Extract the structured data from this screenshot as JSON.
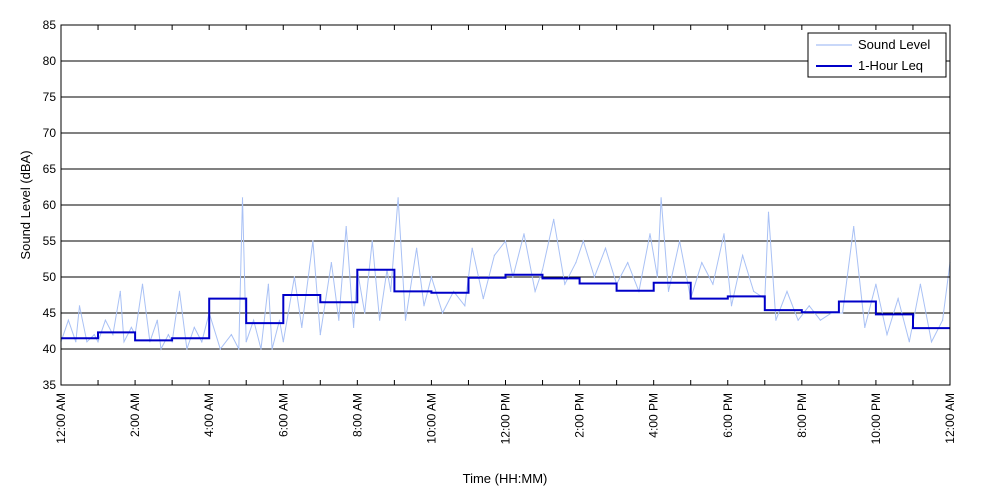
{
  "chart_data": {
    "type": "line",
    "xlabel": "Time (HH:MM)",
    "ylabel": "Sound Level (dBA)",
    "xlim": [
      0,
      24
    ],
    "ylim": [
      35,
      85
    ],
    "grid": "horizontal",
    "legend_position": "top-right",
    "y_ticks": [
      35,
      40,
      45,
      50,
      55,
      60,
      65,
      70,
      75,
      80,
      85
    ],
    "x_ticks": [
      {
        "hour": 0,
        "label": "12:00 AM"
      },
      {
        "hour": 2,
        "label": "2:00 AM"
      },
      {
        "hour": 4,
        "label": "4:00 AM"
      },
      {
        "hour": 6,
        "label": "6:00 AM"
      },
      {
        "hour": 8,
        "label": "8:00 AM"
      },
      {
        "hour": 10,
        "label": "10:00 AM"
      },
      {
        "hour": 12,
        "label": "12:00 PM"
      },
      {
        "hour": 14,
        "label": "2:00 PM"
      },
      {
        "hour": 16,
        "label": "4:00 PM"
      },
      {
        "hour": 18,
        "label": "6:00 PM"
      },
      {
        "hour": 20,
        "label": "8:00 PM"
      },
      {
        "hour": 22,
        "label": "10:00 PM"
      },
      {
        "hour": 24,
        "label": "12:00 AM"
      }
    ],
    "series": [
      {
        "name": "Sound Level",
        "color": "#a9c1f5",
        "style": "thin-line",
        "x": [
          0.0,
          0.2,
          0.4,
          0.5,
          0.7,
          0.9,
          1.0,
          1.2,
          1.4,
          1.6,
          1.7,
          1.9,
          2.0,
          2.2,
          2.4,
          2.6,
          2.7,
          2.9,
          3.0,
          3.2,
          3.4,
          3.6,
          3.8,
          4.0,
          4.3,
          4.6,
          4.8,
          4.9,
          5.0,
          5.2,
          5.4,
          5.6,
          5.7,
          5.9,
          6.0,
          6.3,
          6.5,
          6.8,
          7.0,
          7.3,
          7.5,
          7.7,
          7.9,
          8.0,
          8.2,
          8.4,
          8.6,
          8.8,
          8.9,
          9.1,
          9.3,
          9.6,
          9.8,
          10.0,
          10.3,
          10.6,
          10.9,
          11.1,
          11.4,
          11.7,
          12.0,
          12.2,
          12.5,
          12.8,
          13.0,
          13.3,
          13.6,
          13.9,
          14.1,
          14.4,
          14.7,
          15.0,
          15.3,
          15.6,
          15.9,
          16.1,
          16.2,
          16.4,
          16.7,
          17.0,
          17.3,
          17.6,
          17.9,
          18.1,
          18.4,
          18.7,
          19.0,
          19.1,
          19.3,
          19.6,
          19.9,
          20.2,
          20.5,
          20.8,
          21.1,
          21.4,
          21.7,
          22.0,
          22.3,
          22.6,
          22.9,
          23.2,
          23.5,
          23.8,
          24.0
        ],
        "y": [
          41,
          44,
          41,
          46,
          41,
          42,
          41,
          44,
          42,
          48,
          41,
          43,
          42,
          49,
          41,
          44,
          40,
          42,
          41,
          48,
          40,
          43,
          41,
          45,
          40,
          42,
          40,
          61,
          41,
          44,
          40,
          49,
          40,
          44,
          41,
          50,
          43,
          55,
          42,
          52,
          44,
          57,
          43,
          51,
          45,
          55,
          44,
          51,
          48,
          61,
          44,
          54,
          46,
          50,
          45,
          48,
          46,
          54,
          47,
          53,
          55,
          50,
          56,
          48,
          51,
          58,
          49,
          52,
          55,
          50,
          54,
          49,
          52,
          48,
          56,
          50,
          61,
          48,
          55,
          47,
          52,
          49,
          56,
          46,
          53,
          48,
          47,
          59,
          44,
          48,
          44,
          46,
          44,
          45,
          45,
          57,
          43,
          49,
          42,
          47,
          41,
          49,
          41,
          44,
          52
        ]
      },
      {
        "name": "1-Hour Leq",
        "color": "#0000c8",
        "style": "step",
        "x": [
          0,
          1,
          2,
          3,
          4,
          5,
          6,
          7,
          8,
          9,
          10,
          11,
          12,
          13,
          14,
          15,
          16,
          17,
          18,
          19,
          20,
          21,
          22,
          23
        ],
        "y": [
          41.5,
          42.3,
          41.2,
          41.5,
          47.0,
          43.6,
          47.5,
          46.5,
          51.0,
          48.0,
          47.8,
          49.9,
          50.3,
          49.8,
          49.1,
          48.1,
          49.2,
          47.0,
          47.3,
          45.4,
          45.1,
          46.6,
          44.8,
          42.9
        ]
      }
    ]
  }
}
